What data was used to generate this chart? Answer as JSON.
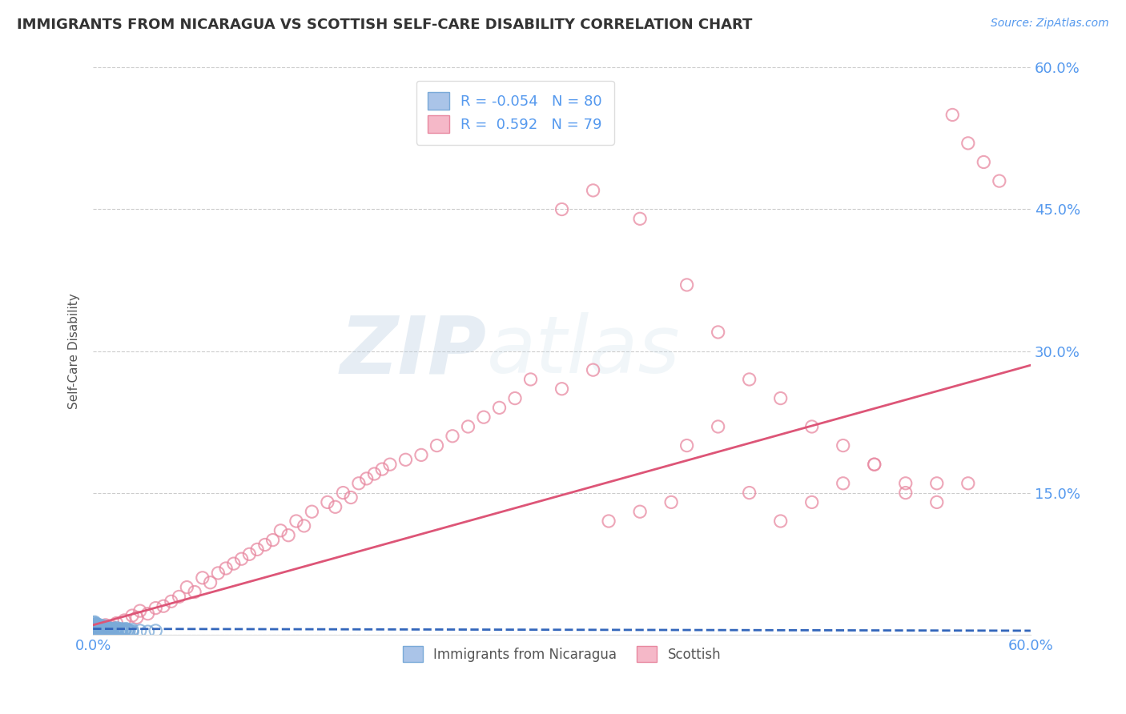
{
  "title": "IMMIGRANTS FROM NICARAGUA VS SCOTTISH SELF-CARE DISABILITY CORRELATION CHART",
  "source_text": "Source: ZipAtlas.com",
  "ylabel": "Self-Care Disability",
  "xlim": [
    0.0,
    0.6
  ],
  "ylim": [
    0.0,
    0.6
  ],
  "yticks": [
    0.0,
    0.15,
    0.3,
    0.45,
    0.6
  ],
  "yticklabels": [
    "",
    "15.0%",
    "30.0%",
    "45.0%",
    "60.0%"
  ],
  "blue_R": -0.054,
  "blue_N": 80,
  "pink_R": 0.592,
  "pink_N": 79,
  "blue_color": "#aac4e8",
  "pink_color": "#f5b8c8",
  "blue_edge_color": "#7aaad8",
  "pink_edge_color": "#e888a0",
  "blue_line_color": "#3366bb",
  "pink_line_color": "#dd5577",
  "watermark_zip": "ZIP",
  "watermark_atlas": "atlas",
  "background_color": "#ffffff",
  "grid_color": "#cccccc",
  "tick_label_color": "#5599ee",
  "legend_label1": "Immigrants from Nicaragua",
  "legend_label2": "Scottish",
  "pink_scatter_x": [
    0.005,
    0.008,
    0.012,
    0.015,
    0.02,
    0.025,
    0.028,
    0.03,
    0.035,
    0.04,
    0.045,
    0.05,
    0.055,
    0.06,
    0.065,
    0.07,
    0.075,
    0.08,
    0.085,
    0.09,
    0.095,
    0.1,
    0.105,
    0.11,
    0.115,
    0.12,
    0.125,
    0.13,
    0.135,
    0.14,
    0.15,
    0.155,
    0.16,
    0.165,
    0.17,
    0.175,
    0.18,
    0.185,
    0.19,
    0.2,
    0.21,
    0.22,
    0.23,
    0.24,
    0.25,
    0.26,
    0.27,
    0.28,
    0.3,
    0.32,
    0.33,
    0.35,
    0.37,
    0.38,
    0.4,
    0.42,
    0.44,
    0.46,
    0.48,
    0.5,
    0.52,
    0.54,
    0.55,
    0.56,
    0.57,
    0.58,
    0.3,
    0.32,
    0.35,
    0.38,
    0.4,
    0.42,
    0.44,
    0.46,
    0.48,
    0.5,
    0.52,
    0.54,
    0.56
  ],
  "pink_scatter_y": [
    0.005,
    0.01,
    0.008,
    0.012,
    0.015,
    0.02,
    0.018,
    0.025,
    0.022,
    0.028,
    0.03,
    0.035,
    0.04,
    0.05,
    0.045,
    0.06,
    0.055,
    0.065,
    0.07,
    0.075,
    0.08,
    0.085,
    0.09,
    0.095,
    0.1,
    0.11,
    0.105,
    0.12,
    0.115,
    0.13,
    0.14,
    0.135,
    0.15,
    0.145,
    0.16,
    0.165,
    0.17,
    0.175,
    0.18,
    0.185,
    0.19,
    0.2,
    0.21,
    0.22,
    0.23,
    0.24,
    0.25,
    0.27,
    0.26,
    0.28,
    0.12,
    0.13,
    0.14,
    0.2,
    0.22,
    0.15,
    0.12,
    0.14,
    0.16,
    0.18,
    0.15,
    0.16,
    0.55,
    0.52,
    0.5,
    0.48,
    0.45,
    0.47,
    0.44,
    0.37,
    0.32,
    0.27,
    0.25,
    0.22,
    0.2,
    0.18,
    0.16,
    0.14,
    0.16
  ],
  "blue_scatter_x": [
    0.001,
    0.001,
    0.001,
    0.002,
    0.002,
    0.002,
    0.003,
    0.003,
    0.003,
    0.004,
    0.004,
    0.004,
    0.005,
    0.005,
    0.005,
    0.006,
    0.006,
    0.006,
    0.007,
    0.007,
    0.008,
    0.008,
    0.009,
    0.009,
    0.01,
    0.01,
    0.011,
    0.012,
    0.013,
    0.014,
    0.015,
    0.016,
    0.017,
    0.018,
    0.019,
    0.02,
    0.021,
    0.022,
    0.023,
    0.025,
    0.001,
    0.001,
    0.002,
    0.002,
    0.003,
    0.003,
    0.004,
    0.004,
    0.005,
    0.005,
    0.006,
    0.007,
    0.008,
    0.009,
    0.01,
    0.011,
    0.012,
    0.015,
    0.018,
    0.02,
    0.025,
    0.03,
    0.035,
    0.04,
    0.001,
    0.002,
    0.003,
    0.004,
    0.005,
    0.006,
    0.007,
    0.008,
    0.009,
    0.01,
    0.012,
    0.015,
    0.018,
    0.02,
    0.022,
    0.025
  ],
  "blue_scatter_y": [
    0.005,
    0.003,
    0.008,
    0.004,
    0.006,
    0.009,
    0.005,
    0.007,
    0.003,
    0.006,
    0.004,
    0.008,
    0.005,
    0.007,
    0.003,
    0.006,
    0.004,
    0.008,
    0.005,
    0.007,
    0.004,
    0.006,
    0.005,
    0.007,
    0.004,
    0.006,
    0.005,
    0.004,
    0.006,
    0.005,
    0.007,
    0.005,
    0.004,
    0.006,
    0.005,
    0.004,
    0.006,
    0.005,
    0.004,
    0.003,
    0.01,
    0.012,
    0.009,
    0.011,
    0.008,
    0.01,
    0.007,
    0.009,
    0.006,
    0.008,
    0.005,
    0.007,
    0.006,
    0.005,
    0.007,
    0.006,
    0.005,
    0.006,
    0.005,
    0.004,
    0.005,
    0.004,
    0.003,
    0.004,
    0.013,
    0.011,
    0.009,
    0.01,
    0.008,
    0.007,
    0.009,
    0.007,
    0.006,
    0.005,
    0.006,
    0.005,
    0.004,
    0.005,
    0.004,
    0.003
  ]
}
